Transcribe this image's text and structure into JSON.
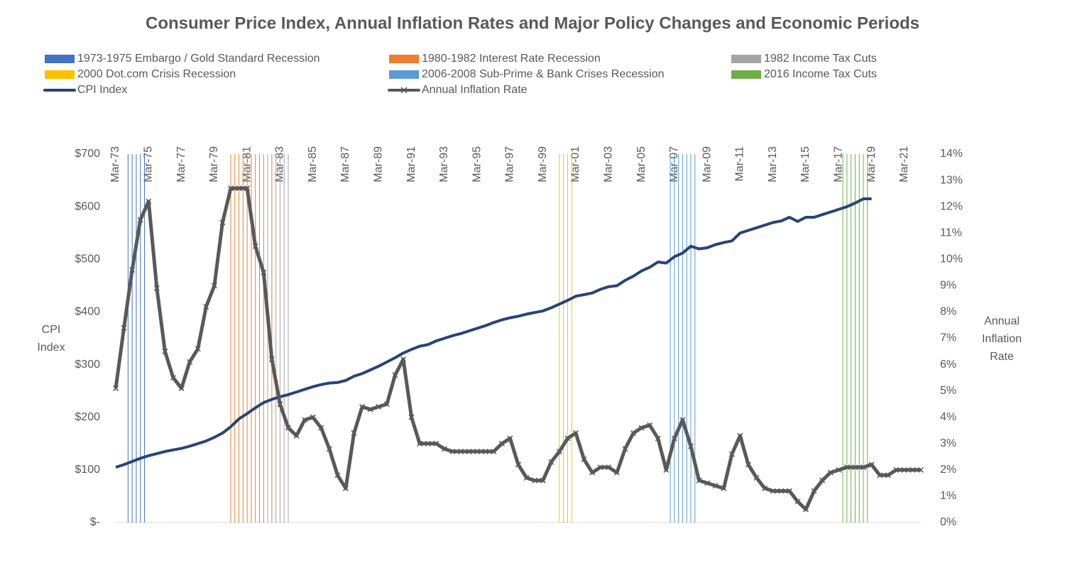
{
  "chart_data": {
    "type": "line",
    "title": "Consumer Price Index, Annual Inflation Rates and Major Policy Changes and Economic Periods",
    "y_label": [
      "CPI",
      "Index"
    ],
    "y2_label": [
      "Annual",
      "Inflation",
      "Rate"
    ],
    "grid": false,
    "legend": "top",
    "x": [
      "Mar-73",
      "Sep-73",
      "Mar-74",
      "Sep-74",
      "Mar-75",
      "Sep-75",
      "Mar-76",
      "Sep-76",
      "Mar-77",
      "Sep-77",
      "Mar-78",
      "Sep-78",
      "Mar-79",
      "Sep-79",
      "Mar-80",
      "Sep-80",
      "Mar-81",
      "Sep-81",
      "Mar-82",
      "Sep-82",
      "Mar-83",
      "Sep-83",
      "Mar-84",
      "Sep-84",
      "Mar-85",
      "Sep-85",
      "Mar-86",
      "Sep-86",
      "Mar-87",
      "Sep-87",
      "Mar-88",
      "Sep-88",
      "Mar-89",
      "Sep-89",
      "Mar-90",
      "Sep-90",
      "Mar-91",
      "Sep-91",
      "Mar-92",
      "Sep-92",
      "Mar-93",
      "Sep-93",
      "Mar-94",
      "Sep-94",
      "Mar-95",
      "Sep-95",
      "Mar-96",
      "Sep-96",
      "Mar-97",
      "Sep-97",
      "Mar-98",
      "Sep-98",
      "Mar-99",
      "Sep-99",
      "Mar-00",
      "Sep-00",
      "Mar-01",
      "Sep-01",
      "Mar-02",
      "Sep-02",
      "Mar-03",
      "Sep-03",
      "Mar-04",
      "Sep-04",
      "Mar-05",
      "Sep-05",
      "Mar-06",
      "Sep-06",
      "Mar-07",
      "Sep-07",
      "Mar-08",
      "Sep-08",
      "Mar-09",
      "Sep-09",
      "Mar-10",
      "Sep-10",
      "Mar-11",
      "Sep-11",
      "Mar-12",
      "Sep-12",
      "Mar-13",
      "Sep-13",
      "Mar-14",
      "Sep-14",
      "Mar-15",
      "Sep-15",
      "Mar-16",
      "Sep-16",
      "Mar-17",
      "Sep-17",
      "Mar-18",
      "Sep-18",
      "Mar-19",
      "Sep-19",
      "Mar-20",
      "Sep-20",
      "Mar-21",
      "Sep-21",
      "Mar-22"
    ],
    "xlim": [
      "Mar-73",
      "Mar-22"
    ],
    "xticks": [
      "Mar-73",
      "Mar-75",
      "Mar-77",
      "Mar-79",
      "Mar-81",
      "Mar-83",
      "Mar-85",
      "Mar-87",
      "Mar-89",
      "Mar-91",
      "Mar-93",
      "Mar-95",
      "Mar-97",
      "Mar-99",
      "Mar-01",
      "Mar-03",
      "Mar-05",
      "Mar-07",
      "Mar-09",
      "Mar-11",
      "Mar-13",
      "Mar-15",
      "Mar-17",
      "Mar-19",
      "Mar-21"
    ],
    "ylim": [
      0,
      700
    ],
    "yticks": [
      {
        "value": 0,
        "label": "$-"
      },
      {
        "value": 100,
        "label": "$100"
      },
      {
        "value": 200,
        "label": "$200"
      },
      {
        "value": 300,
        "label": "$300"
      },
      {
        "value": 400,
        "label": "$400"
      },
      {
        "value": 500,
        "label": "$500"
      },
      {
        "value": 600,
        "label": "$600"
      },
      {
        "value": 700,
        "label": "$700"
      }
    ],
    "y2lim": [
      0,
      14
    ],
    "y2ticks": [
      {
        "value": 0,
        "label": "0%"
      },
      {
        "value": 1,
        "label": "1%"
      },
      {
        "value": 2,
        "label": "2%"
      },
      {
        "value": 3,
        "label": "3%"
      },
      {
        "value": 4,
        "label": "4%"
      },
      {
        "value": 5,
        "label": "5%"
      },
      {
        "value": 6,
        "label": "6%"
      },
      {
        "value": 7,
        "label": "7%"
      },
      {
        "value": 8,
        "label": "8%"
      },
      {
        "value": 9,
        "label": "9%"
      },
      {
        "value": 10,
        "label": "10%"
      },
      {
        "value": 11,
        "label": "11%"
      },
      {
        "value": 12,
        "label": "12%"
      },
      {
        "value": 13,
        "label": "13%"
      },
      {
        "value": 14,
        "label": "14%"
      }
    ],
    "periods": [
      {
        "name": "1973-1975 Embargo / Gold Standard Recession",
        "color": "#4472c4",
        "x": [
          "Dec-73",
          "Mar-74",
          "Jun-74",
          "Sep-74",
          "Dec-74"
        ]
      },
      {
        "name": "1980-1982 Interest Rate Recession",
        "color": "#ed7d31",
        "x": [
          "Mar-80",
          "Jun-80",
          "Sep-80",
          "Dec-80",
          "Mar-81",
          "Jun-81",
          "Sep-81",
          "Dec-81",
          "Mar-82",
          "Sep-82"
        ]
      },
      {
        "name": "1982 Income Tax Cuts",
        "color": "#a5a5a5",
        "x": [
          "Jun-82",
          "Dec-82",
          "Mar-83",
          "Jun-83",
          "Sep-83"
        ]
      },
      {
        "name": "2000 Dot.com Crisis Recession",
        "color": "#ffc000",
        "x": [
          "Mar-00",
          "Jun-00",
          "Sep-00",
          "Dec-00"
        ]
      },
      {
        "name": "2006-2008 Sub-Prime & Bank Crises Recession",
        "color": "#5b9bd5",
        "x": [
          "Dec-06",
          "Mar-07",
          "Jun-07",
          "Sep-07",
          "Dec-07",
          "Mar-08",
          "Jun-08"
        ]
      },
      {
        "name": "2016 Income Tax Cuts",
        "color": "#70ad47",
        "x": [
          "Jun-17",
          "Sep-17",
          "Dec-17",
          "Mar-18",
          "Jun-18",
          "Sep-18",
          "Dec-18"
        ]
      }
    ],
    "series": [
      {
        "name": "CPI Index",
        "color": "#264478",
        "values": [
          105,
          110,
          116,
          122,
          127,
          131,
          135,
          138,
          141,
          145,
          150,
          155,
          162,
          170,
          182,
          197,
          207,
          218,
          228,
          234,
          239,
          243,
          248,
          253,
          258,
          262,
          265,
          266,
          270,
          278,
          283,
          290,
          297,
          305,
          313,
          322,
          329,
          335,
          338,
          345,
          350,
          355,
          359,
          364,
          369,
          374,
          380,
          385,
          389,
          392,
          396,
          399,
          402,
          408,
          415,
          422,
          430,
          433,
          436,
          443,
          448,
          450,
          460,
          468,
          478,
          485,
          495,
          493,
          505,
          512,
          525,
          520,
          522,
          528,
          532,
          535,
          550,
          555,
          560,
          565,
          570,
          573,
          580,
          572,
          580,
          580,
          585,
          590,
          595,
          600,
          607,
          615,
          615,
          null,
          null,
          null,
          null,
          null,
          null
        ]
      },
      {
        "name": "Annual Inflation Rate",
        "color": "#595959",
        "axis": "y2",
        "marker": "x",
        "values": [
          5.1,
          7.4,
          9.6,
          11.5,
          12.2,
          8.9,
          6.5,
          5.5,
          5.1,
          6.1,
          6.6,
          8.2,
          9.0,
          11.4,
          12.7,
          12.7,
          12.7,
          10.5,
          9.5,
          6.2,
          4.5,
          3.6,
          3.3,
          3.9,
          4.0,
          3.6,
          2.8,
          1.8,
          1.3,
          3.4,
          4.4,
          4.3,
          4.4,
          4.5,
          5.6,
          6.2,
          4.0,
          3.0,
          3.0,
          3.0,
          2.8,
          2.7,
          2.7,
          2.7,
          2.7,
          2.7,
          2.7,
          3.0,
          3.2,
          2.2,
          1.7,
          1.6,
          1.6,
          2.3,
          2.7,
          3.2,
          3.4,
          2.4,
          1.9,
          2.1,
          2.1,
          1.9,
          2.8,
          3.4,
          3.6,
          3.7,
          3.2,
          2.0,
          3.2,
          3.9,
          2.9,
          1.6,
          1.5,
          1.4,
          1.3,
          2.6,
          3.3,
          2.2,
          1.7,
          1.3,
          1.2,
          1.2,
          1.2,
          0.8,
          0.5,
          1.2,
          1.6,
          1.9,
          2.0,
          2.1,
          2.1,
          2.1,
          2.2,
          1.8,
          1.8,
          2.0,
          2.0,
          2.0,
          2.0
        ]
      }
    ]
  }
}
